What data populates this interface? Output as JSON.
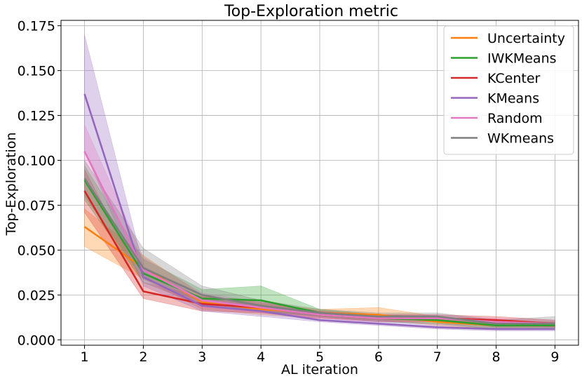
{
  "chart_data": {
    "type": "line",
    "title": "Top-Exploration metric",
    "xlabel": "AL iteration",
    "ylabel": "Top-Exploration",
    "x": [
      1,
      2,
      3,
      4,
      5,
      6,
      7,
      8,
      9
    ],
    "xlim": [
      0.6,
      9.4
    ],
    "ylim": [
      -0.003,
      0.178
    ],
    "yticks": [
      0.0,
      0.025,
      0.05,
      0.075,
      0.1,
      0.125,
      0.15,
      0.175
    ],
    "ytick_labels": [
      "0.000",
      "0.025",
      "0.050",
      "0.075",
      "0.100",
      "0.125",
      "0.150",
      "0.175"
    ],
    "xtick_labels": [
      "1",
      "2",
      "3",
      "4",
      "5",
      "6",
      "7",
      "8",
      "9"
    ],
    "grid": true,
    "legend_position": "top-right",
    "series": [
      {
        "name": "Uncertainty",
        "color": "#ff7f0e",
        "values": [
          0.063,
          0.04,
          0.021,
          0.017,
          0.015,
          0.014,
          0.01,
          0.008,
          0.008
        ],
        "lower": [
          0.052,
          0.034,
          0.017,
          0.014,
          0.012,
          0.011,
          0.008,
          0.006,
          0.006
        ],
        "upper": [
          0.073,
          0.047,
          0.025,
          0.02,
          0.017,
          0.018,
          0.013,
          0.01,
          0.01
        ]
      },
      {
        "name": "IWKMeans",
        "color": "#2ca02c",
        "values": [
          0.089,
          0.037,
          0.023,
          0.022,
          0.015,
          0.012,
          0.011,
          0.008,
          0.008
        ],
        "lower": [
          0.078,
          0.032,
          0.019,
          0.016,
          0.013,
          0.01,
          0.009,
          0.006,
          0.006
        ],
        "upper": [
          0.097,
          0.045,
          0.028,
          0.03,
          0.017,
          0.014,
          0.013,
          0.01,
          0.01
        ]
      },
      {
        "name": "KCenter",
        "color": "#d62728",
        "values": [
          0.083,
          0.027,
          0.02,
          0.018,
          0.014,
          0.012,
          0.012,
          0.011,
          0.009
        ],
        "lower": [
          0.071,
          0.023,
          0.016,
          0.015,
          0.012,
          0.01,
          0.01,
          0.009,
          0.007
        ],
        "upper": [
          0.095,
          0.032,
          0.024,
          0.021,
          0.016,
          0.014,
          0.014,
          0.013,
          0.011
        ]
      },
      {
        "name": "KMeans",
        "color": "#9467bd",
        "values": [
          0.137,
          0.035,
          0.019,
          0.016,
          0.011,
          0.009,
          0.007,
          0.006,
          0.006
        ],
        "lower": [
          0.105,
          0.03,
          0.016,
          0.013,
          0.01,
          0.008,
          0.006,
          0.005,
          0.005
        ],
        "upper": [
          0.17,
          0.041,
          0.023,
          0.019,
          0.013,
          0.011,
          0.009,
          0.008,
          0.008
        ]
      },
      {
        "name": "Random",
        "color": "#e377c2",
        "values": [
          0.105,
          0.039,
          0.022,
          0.018,
          0.014,
          0.012,
          0.012,
          0.01,
          0.009
        ],
        "lower": [
          0.09,
          0.033,
          0.018,
          0.015,
          0.012,
          0.01,
          0.01,
          0.008,
          0.007
        ],
        "upper": [
          0.12,
          0.046,
          0.026,
          0.021,
          0.016,
          0.014,
          0.014,
          0.012,
          0.011
        ]
      },
      {
        "name": "WKmeans",
        "color": "#7f7f7f",
        "values": [
          0.09,
          0.04,
          0.025,
          0.019,
          0.015,
          0.013,
          0.013,
          0.009,
          0.009
        ],
        "lower": [
          0.08,
          0.034,
          0.021,
          0.016,
          0.013,
          0.011,
          0.011,
          0.007,
          0.007
        ],
        "upper": [
          0.1,
          0.051,
          0.03,
          0.022,
          0.017,
          0.015,
          0.015,
          0.011,
          0.013
        ]
      }
    ]
  }
}
